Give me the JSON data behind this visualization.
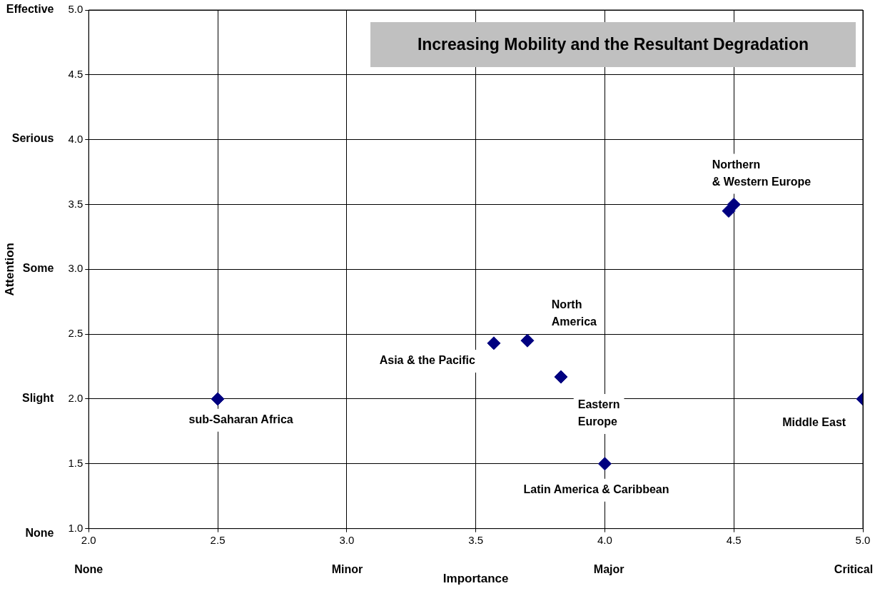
{
  "chart_data": {
    "type": "scatter",
    "title": "Increasing Mobility and the Resultant Degradation",
    "xlabel": "Importance",
    "ylabel": "Attention",
    "series": [
      {
        "color": "#000080",
        "x": [
          2.5,
          3.57,
          3.7,
          3.83,
          4.0,
          5.0,
          4.48,
          4.5
        ],
        "values": [
          2.0,
          2.43,
          2.45,
          2.17,
          1.5,
          2.0,
          3.45,
          3.5
        ]
      }
    ],
    "marker": "diamond",
    "grid": true,
    "legend": false,
    "xlim": [
      2,
      5
    ],
    "xticks": [
      {
        "value": 2,
        "label": "2.0"
      },
      {
        "value": 2.5,
        "label": "2.5"
      },
      {
        "value": 3,
        "label": "3.0"
      },
      {
        "value": 3.5,
        "label": "3.5"
      },
      {
        "value": 4,
        "label": "4.0"
      },
      {
        "value": 4.5,
        "label": "4.5"
      },
      {
        "value": 5,
        "label": "5.0"
      }
    ],
    "ylim": [
      1,
      5
    ],
    "yticks": [
      {
        "value": 1,
        "label": "1.0"
      },
      {
        "value": 1.5,
        "label": "1.5"
      },
      {
        "value": 2,
        "label": "2.0"
      },
      {
        "value": 2.5,
        "label": "2.5"
      },
      {
        "value": 3,
        "label": "3.0"
      },
      {
        "value": 3.5,
        "label": "3.5"
      },
      {
        "value": 4,
        "label": "4.0"
      },
      {
        "value": 4.5,
        "label": "4.5"
      },
      {
        "value": 5,
        "label": "5.0"
      }
    ],
    "annotations": [
      "Northern\n& Western Europe",
      "North\nAmerica",
      "Asia & the Pacific",
      "sub-Saharan Africa",
      "Eastern\nEurope",
      "Middle East",
      "Latin America & Caribbean",
      "None",
      "Minor",
      "Major",
      "Critical",
      "Effective",
      "Serious",
      "Some",
      "Slight",
      "None"
    ]
  }
}
